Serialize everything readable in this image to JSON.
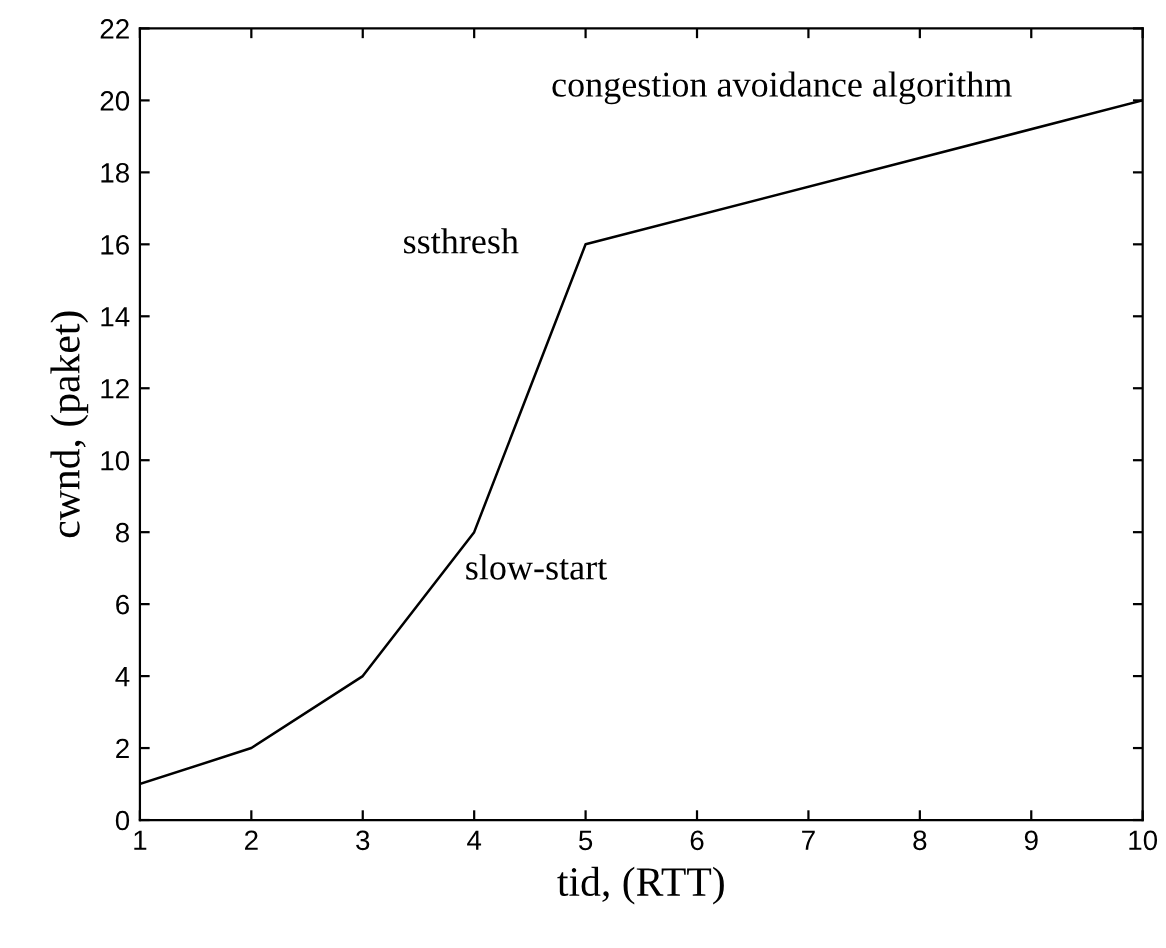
{
  "chart_data": {
    "type": "line",
    "xlabel": "tid, (RTT)",
    "ylabel": "cwnd, (paket)",
    "x": [
      1,
      2,
      3,
      4,
      5,
      10
    ],
    "series": [
      {
        "color": "#000000",
        "values": [
          1,
          2,
          4,
          8,
          16,
          20
        ]
      }
    ],
    "xlim": [
      1,
      10
    ],
    "ylim": [
      0,
      22
    ],
    "xticks": [
      1,
      2,
      3,
      4,
      5,
      6,
      7,
      8,
      9,
      10
    ],
    "yticks": [
      0,
      2,
      4,
      6,
      8,
      10,
      12,
      14,
      16,
      18,
      20,
      22
    ],
    "grid": false,
    "legend": false,
    "marker": "none",
    "line_style": "solid",
    "annotations": [
      "congestion avoidance algorithm",
      "ssthresh",
      "slow-start"
    ]
  }
}
